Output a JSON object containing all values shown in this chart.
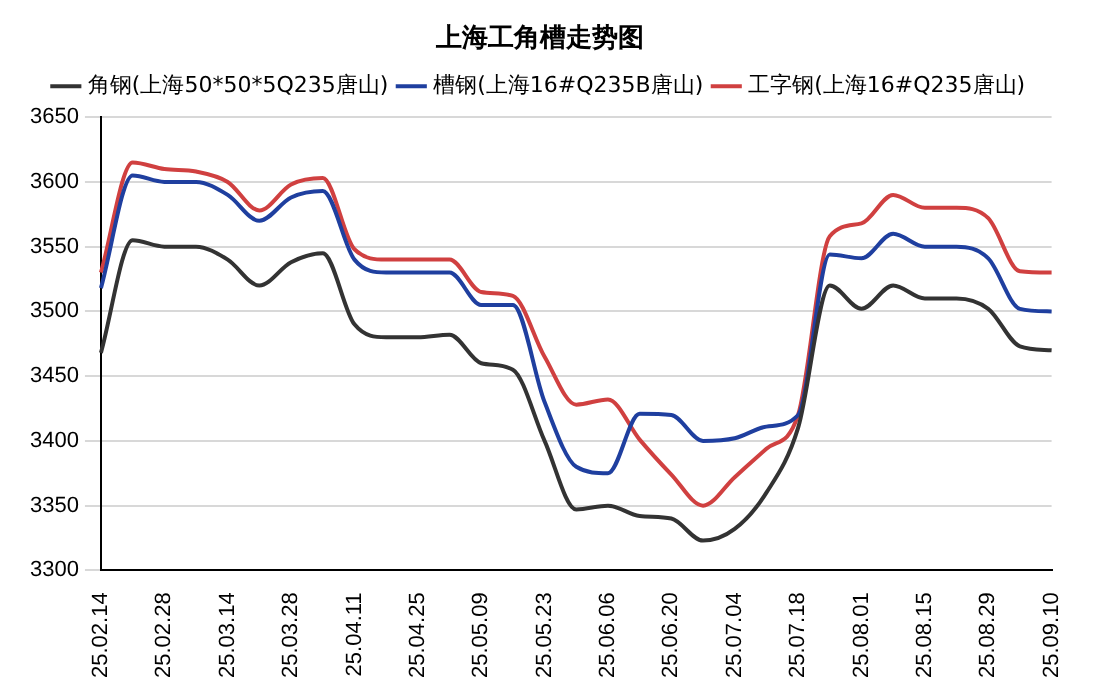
{
  "chart_data": {
    "type": "line",
    "title": "上海工角槽走势图",
    "categories": [
      "25.02.14",
      null,
      "25.02.28",
      null,
      "25.03.14",
      null,
      "25.03.28",
      null,
      "25.04.11",
      null,
      "25.04.25",
      null,
      "25.05.09",
      null,
      "25.05.23",
      null,
      "25.06.06",
      null,
      "25.06.20",
      null,
      "25.07.04",
      null,
      "25.07.18",
      null,
      "25.08.01",
      null,
      "25.08.15",
      null,
      "25.08.29",
      null,
      "25.09.10"
    ],
    "series": [
      {
        "name": "角钢(上海50*50*5Q235唐山)",
        "color": "#333333",
        "values": [
          3468,
          3555,
          3550,
          3550,
          3540,
          3520,
          3538,
          3545,
          3490,
          3480,
          3480,
          3482,
          3460,
          3455,
          3400,
          3347,
          3350,
          3342,
          3340,
          3323,
          3332,
          3360,
          3410,
          3520,
          3502,
          3520,
          3510,
          3510,
          3502,
          3473,
          3470
        ]
      },
      {
        "name": "槽钢(上海16#Q235B唐山)",
        "color": "#1f3f9f",
        "values": [
          3518,
          3605,
          3600,
          3600,
          3590,
          3570,
          3588,
          3593,
          3540,
          3530,
          3530,
          3530,
          3505,
          3505,
          3430,
          3380,
          3375,
          3421,
          3420,
          3400,
          3402,
          3411,
          3420,
          3544,
          3541,
          3560,
          3550,
          3550,
          3541,
          3502,
          3500
        ]
      },
      {
        "name": "工字钢(上海16#Q235唐山)",
        "color": "#d04040",
        "values": [
          3530,
          3615,
          3610,
          3608,
          3600,
          3578,
          3598,
          3603,
          3548,
          3540,
          3540,
          3540,
          3515,
          3512,
          3465,
          3428,
          3432,
          3401,
          3374,
          3350,
          3372,
          3394,
          3420,
          3558,
          3568,
          3590,
          3580,
          3580,
          3572,
          3531,
          3530
        ]
      }
    ],
    "ylim": [
      3300,
      3650
    ],
    "yticks": [
      3300,
      3350,
      3400,
      3450,
      3500,
      3550,
      3600,
      3650
    ],
    "grid": "y",
    "legend": "top",
    "marker": "none",
    "line_style": "solid"
  }
}
